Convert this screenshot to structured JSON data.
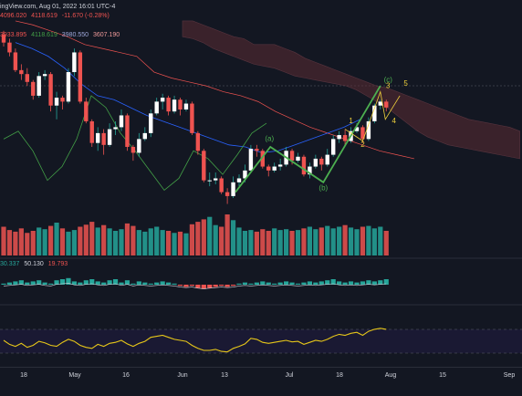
{
  "header": {
    "line1": "ingView.com, Aug 01, 2022 16:01 UTC-4",
    "ohlc_prefix": "4096.020",
    "ohlc_close": "4118.619",
    "change": "-11.670 (-0.28%)",
    "ichimoku_values": [
      "3933.895",
      "4118.619",
      "3980.550",
      "3607.190"
    ],
    "osc_values": [
      "30.337",
      "50.130",
      "19.793"
    ]
  },
  "colors": {
    "up": "#26a69a",
    "down": "#ef5350",
    "background": "#131722",
    "wave": "#4caf50",
    "labels": "#f0d23c",
    "tenkan": "#2962ff",
    "kijun": "#b71c1c",
    "chikou": "#43a047",
    "rsi": "#e6c619",
    "cloud_bear": "#5b2c34",
    "cloud_bull": "#1f3d33"
  },
  "xaxis": {
    "ticks": [
      "18",
      "May",
      "16",
      "Jun",
      "13",
      "Jul",
      "18",
      "Aug",
      "15",
      "Sep"
    ]
  },
  "annotations": {
    "wave_a": "(a)",
    "wave_b": "(b)",
    "wave_c": "(c)",
    "w1": "1",
    "w2": "2",
    "w3": "3",
    "w4": "4",
    "w5": "5"
  },
  "chart_data": {
    "type": "candlestick",
    "title": "",
    "dates_range": [
      "2022-04-18",
      "2022-08-01"
    ],
    "ylim": [
      3600,
      4620
    ],
    "candles": [
      [
        4490,
        4450,
        4510,
        4430
      ],
      [
        4450,
        4400,
        4470,
        4380
      ],
      [
        4400,
        4310,
        4420,
        4300
      ],
      [
        4310,
        4290,
        4340,
        4260
      ],
      [
        4290,
        4250,
        4320,
        4230
      ],
      [
        4250,
        4180,
        4260,
        4160
      ],
      [
        4180,
        4280,
        4300,
        4170
      ],
      [
        4280,
        4290,
        4310,
        4260
      ],
      [
        4290,
        4130,
        4300,
        4100
      ],
      [
        4130,
        4170,
        4200,
        4060
      ],
      [
        4170,
        4150,
        4180,
        4110
      ],
      [
        4150,
        4300,
        4320,
        4140
      ],
      [
        4300,
        4400,
        4420,
        4280
      ],
      [
        4400,
        4150,
        4410,
        4140
      ],
      [
        4150,
        4050,
        4170,
        4040
      ],
      [
        4050,
        3940,
        4060,
        3920
      ],
      [
        3940,
        3990,
        4020,
        3900
      ],
      [
        3990,
        3930,
        4010,
        3880
      ],
      [
        3930,
        4010,
        4040,
        3920
      ],
      [
        4010,
        4020,
        4050,
        3980
      ],
      [
        4020,
        4080,
        4110,
        4000
      ],
      [
        4080,
        3920,
        4090,
        3900
      ],
      [
        3920,
        3890,
        3930,
        3850
      ],
      [
        3890,
        3960,
        3990,
        3870
      ],
      [
        3960,
        3990,
        4020,
        3950
      ],
      [
        3990,
        4090,
        4110,
        3970
      ],
      [
        4090,
        4150,
        4170,
        4080
      ],
      [
        4150,
        4170,
        4190,
        4110
      ],
      [
        4170,
        4100,
        4180,
        4080
      ],
      [
        4100,
        4160,
        4180,
        4090
      ],
      [
        4160,
        4110,
        4170,
        4080
      ],
      [
        4110,
        4140,
        4160,
        4100
      ],
      [
        4140,
        3990,
        4150,
        3980
      ],
      [
        3990,
        3900,
        4000,
        3880
      ],
      [
        3900,
        3750,
        3910,
        3740
      ],
      [
        3750,
        3750,
        3790,
        3720
      ],
      [
        3750,
        3760,
        3790,
        3730
      ],
      [
        3760,
        3690,
        3770,
        3680
      ],
      [
        3690,
        3670,
        3710,
        3630
      ],
      [
        3670,
        3740,
        3770,
        3660
      ],
      [
        3740,
        3760,
        3780,
        3720
      ],
      [
        3760,
        3800,
        3830,
        3740
      ],
      [
        3800,
        3910,
        3930,
        3790
      ],
      [
        3910,
        3900,
        3930,
        3870
      ],
      [
        3900,
        3820,
        3910,
        3810
      ],
      [
        3820,
        3800,
        3830,
        3770
      ],
      [
        3800,
        3820,
        3840,
        3790
      ],
      [
        3820,
        3830,
        3860,
        3800
      ],
      [
        3830,
        3900,
        3920,
        3820
      ],
      [
        3900,
        3850,
        3910,
        3830
      ],
      [
        3850,
        3870,
        3890,
        3840
      ],
      [
        3870,
        3780,
        3880,
        3770
      ],
      [
        3780,
        3820,
        3840,
        3760
      ],
      [
        3820,
        3860,
        3880,
        3810
      ],
      [
        3860,
        3830,
        3870,
        3800
      ],
      [
        3830,
        3880,
        3910,
        3820
      ],
      [
        3880,
        3960,
        3980,
        3870
      ],
      [
        3960,
        3980,
        4000,
        3940
      ],
      [
        3980,
        3950,
        4010,
        3930
      ],
      [
        3950,
        4000,
        4020,
        3940
      ],
      [
        4000,
        4020,
        4040,
        3990
      ],
      [
        4020,
        3960,
        4030,
        3940
      ],
      [
        3960,
        4050,
        4070,
        3950
      ],
      [
        4050,
        4130,
        4140,
        4040
      ],
      [
        4130,
        4150,
        4160,
        4110
      ],
      [
        4150,
        4120,
        4160,
        4100
      ]
    ],
    "volume": [
      70,
      62,
      58,
      66,
      55,
      60,
      68,
      64,
      72,
      80,
      66,
      58,
      62,
      70,
      75,
      82,
      68,
      74,
      66,
      60,
      64,
      78,
      72,
      62,
      58,
      66,
      70,
      62,
      60,
      55,
      58,
      54,
      76,
      82,
      88,
      94,
      74,
      70,
      100,
      86,
      68,
      60,
      62,
      58,
      64,
      60,
      66,
      62,
      64,
      60,
      62,
      66,
      70,
      64,
      68,
      72,
      66,
      70,
      74,
      68,
      64,
      70,
      72,
      66,
      70,
      60
    ],
    "osc": [
      1,
      2,
      3,
      4,
      2,
      3,
      4,
      2,
      1,
      4,
      5,
      6,
      3,
      2,
      4,
      5,
      3,
      2,
      4,
      5,
      2,
      4,
      1,
      3,
      2,
      1,
      2,
      3,
      2,
      1,
      -1,
      -2,
      -1,
      -3,
      -4,
      -3,
      -2,
      -1,
      -2,
      -1,
      1,
      2,
      1,
      2,
      3,
      2,
      1,
      2,
      3,
      2,
      1,
      2,
      3,
      2,
      3,
      4,
      5,
      3,
      2,
      3,
      2,
      3,
      4,
      3,
      4,
      5
    ],
    "rsi": [
      40,
      32,
      28,
      34,
      26,
      30,
      38,
      35,
      30,
      28,
      36,
      42,
      38,
      30,
      26,
      24,
      32,
      28,
      34,
      36,
      40,
      33,
      28,
      34,
      38,
      46,
      48,
      50,
      46,
      42,
      40,
      38,
      30,
      24,
      20,
      20,
      22,
      18,
      17,
      24,
      28,
      33,
      44,
      42,
      36,
      34,
      36,
      38,
      40,
      37,
      38,
      32,
      36,
      40,
      38,
      42,
      48,
      52,
      50,
      54,
      56,
      50,
      58,
      62,
      64,
      62
    ]
  }
}
